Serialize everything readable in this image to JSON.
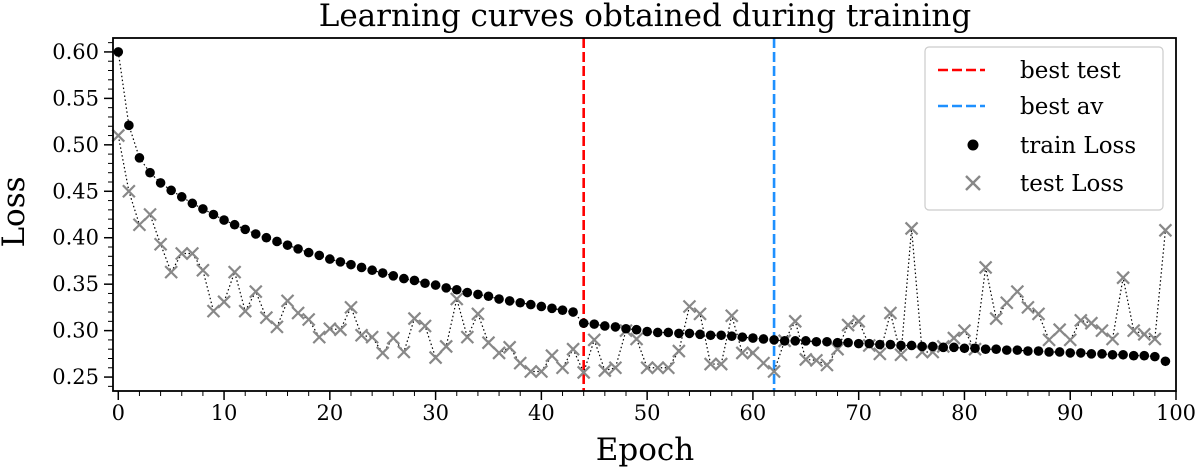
{
  "chart_data": {
    "type": "line",
    "title": "Learning curves obtained during training",
    "xlabel": "Epoch",
    "ylabel": "Loss",
    "xlim": [
      -0.5,
      100
    ],
    "ylim": [
      0.235,
      0.615
    ],
    "xticks": [
      0,
      10,
      20,
      30,
      40,
      50,
      60,
      70,
      80,
      90,
      100
    ],
    "yticks": [
      0.25,
      0.3,
      0.35,
      0.4,
      0.45,
      0.5,
      0.55,
      0.6
    ],
    "x": [
      0,
      1,
      2,
      3,
      4,
      5,
      6,
      7,
      8,
      9,
      10,
      11,
      12,
      13,
      14,
      15,
      16,
      17,
      18,
      19,
      20,
      21,
      22,
      23,
      24,
      25,
      26,
      27,
      28,
      29,
      30,
      31,
      32,
      33,
      34,
      35,
      36,
      37,
      38,
      39,
      40,
      41,
      42,
      43,
      44,
      45,
      46,
      47,
      48,
      49,
      50,
      51,
      52,
      53,
      54,
      55,
      56,
      57,
      58,
      59,
      60,
      61,
      62,
      63,
      64,
      65,
      66,
      67,
      68,
      69,
      70,
      71,
      72,
      73,
      74,
      75,
      76,
      77,
      78,
      79,
      80,
      81,
      82,
      83,
      84,
      85,
      86,
      87,
      88,
      89,
      90,
      91,
      92,
      93,
      94,
      95,
      96,
      97,
      98,
      99
    ],
    "series": [
      {
        "name": "train Loss",
        "marker": "circle",
        "color": "#000000",
        "values": [
          0.6,
          0.521,
          0.486,
          0.47,
          0.459,
          0.451,
          0.444,
          0.437,
          0.431,
          0.425,
          0.419,
          0.414,
          0.409,
          0.404,
          0.4,
          0.396,
          0.392,
          0.388,
          0.384,
          0.381,
          0.377,
          0.374,
          0.371,
          0.368,
          0.365,
          0.362,
          0.359,
          0.356,
          0.354,
          0.351,
          0.349,
          0.346,
          0.344,
          0.341,
          0.339,
          0.337,
          0.334,
          0.332,
          0.33,
          0.328,
          0.326,
          0.324,
          0.322,
          0.32,
          0.308,
          0.307,
          0.305,
          0.304,
          0.302,
          0.301,
          0.299,
          0.298,
          0.298,
          0.297,
          0.297,
          0.296,
          0.295,
          0.295,
          0.294,
          0.293,
          0.292,
          0.291,
          0.29,
          0.289,
          0.289,
          0.289,
          0.288,
          0.288,
          0.287,
          0.287,
          0.286,
          0.286,
          0.285,
          0.285,
          0.284,
          0.284,
          0.283,
          0.283,
          0.282,
          0.282,
          0.281,
          0.281,
          0.28,
          0.28,
          0.279,
          0.279,
          0.278,
          0.278,
          0.277,
          0.277,
          0.276,
          0.276,
          0.275,
          0.275,
          0.274,
          0.274,
          0.273,
          0.273,
          0.272,
          0.267
        ]
      },
      {
        "name": "test Loss",
        "marker": "x",
        "color": "#888888",
        "values": [
          0.51,
          0.45,
          0.414,
          0.425,
          0.393,
          0.363,
          0.383,
          0.383,
          0.365,
          0.321,
          0.331,
          0.363,
          0.321,
          0.342,
          0.314,
          0.304,
          0.332,
          0.319,
          0.312,
          0.293,
          0.302,
          0.301,
          0.325,
          0.295,
          0.293,
          0.276,
          0.292,
          0.277,
          0.313,
          0.305,
          0.271,
          0.283,
          0.334,
          0.293,
          0.318,
          0.287,
          0.276,
          0.282,
          0.265,
          0.256,
          0.256,
          0.273,
          0.26,
          0.28,
          0.255,
          0.29,
          0.257,
          0.26,
          0.3,
          0.291,
          0.26,
          0.26,
          0.26,
          0.278,
          0.326,
          0.318,
          0.264,
          0.264,
          0.316,
          0.276,
          0.276,
          0.265,
          0.256,
          0.289,
          0.31,
          0.269,
          0.268,
          0.263,
          0.28,
          0.306,
          0.31,
          0.284,
          0.275,
          0.319,
          0.274,
          0.41,
          0.277,
          0.277,
          0.283,
          0.292,
          0.3,
          0.28,
          0.368,
          0.313,
          0.33,
          0.342,
          0.325,
          0.318,
          0.29,
          0.301,
          0.29,
          0.311,
          0.308,
          0.3,
          0.291,
          0.357,
          0.3,
          0.296,
          0.291,
          0.408
        ]
      }
    ],
    "vlines": [
      {
        "name": "best test",
        "x": 44,
        "color": "#ff0000"
      },
      {
        "name": "best av",
        "x": 62,
        "color": "#1e90ff"
      }
    ],
    "legend": {
      "position": "top-right",
      "entries": [
        "best test",
        "best av",
        "train Loss",
        "test Loss"
      ]
    }
  }
}
